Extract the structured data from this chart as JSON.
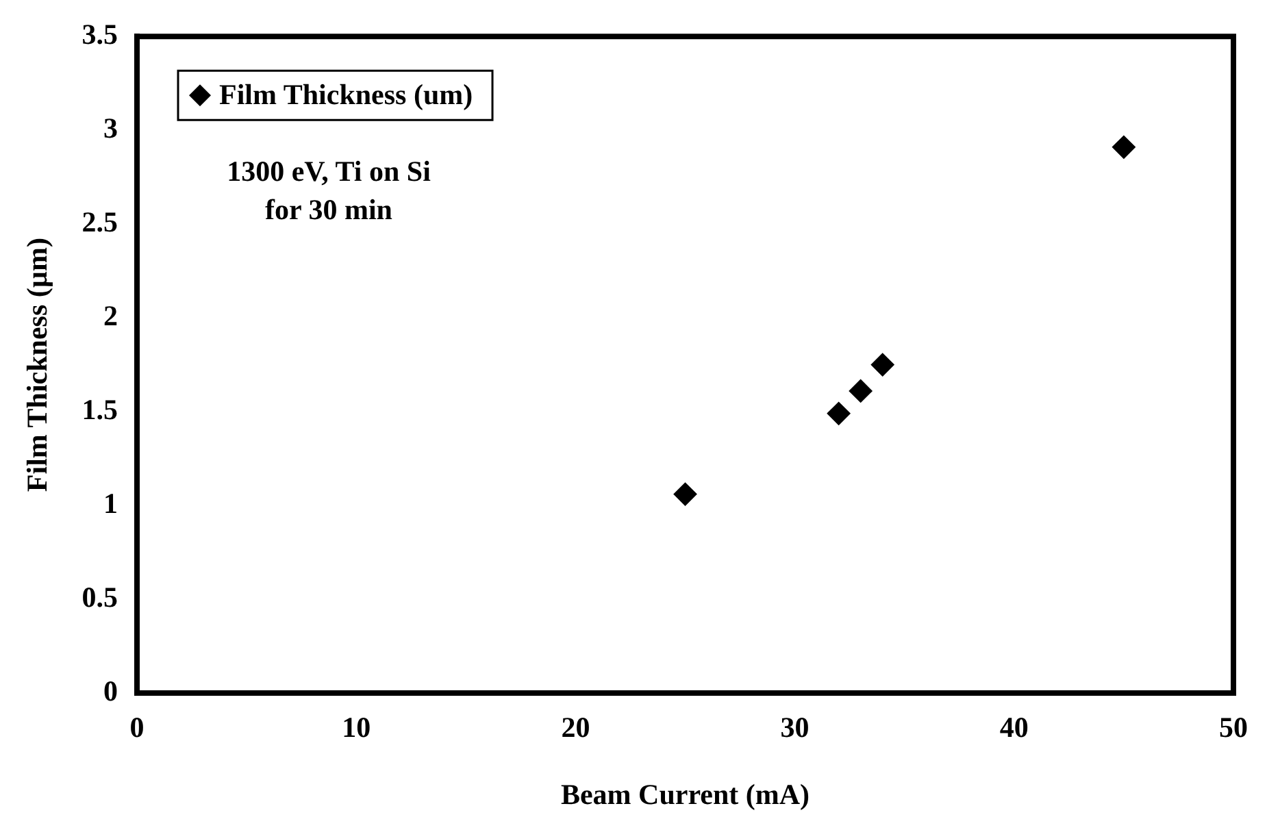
{
  "chart_data": {
    "type": "scatter",
    "xlabel": "Beam Current (mA)",
    "ylabel": "Film Thickness (µm)",
    "x": [
      25,
      32,
      33,
      34,
      45
    ],
    "series": [
      {
        "name": "Film Thickness (um)",
        "color": "#000000",
        "values": [
          1.06,
          1.49,
          1.61,
          1.75,
          2.91
        ]
      }
    ],
    "xlim": [
      0,
      50
    ],
    "xticks": [
      0,
      10,
      20,
      30,
      40,
      50
    ],
    "ylim": [
      0,
      3.5
    ],
    "yticks": [
      0,
      0.5,
      1,
      1.5,
      2,
      2.5,
      3,
      3.5
    ],
    "grid": false,
    "legend": "top left",
    "marker": "diamond",
    "annotations": [
      "1300 eV, Ti on Si\nfor 30 min"
    ]
  }
}
